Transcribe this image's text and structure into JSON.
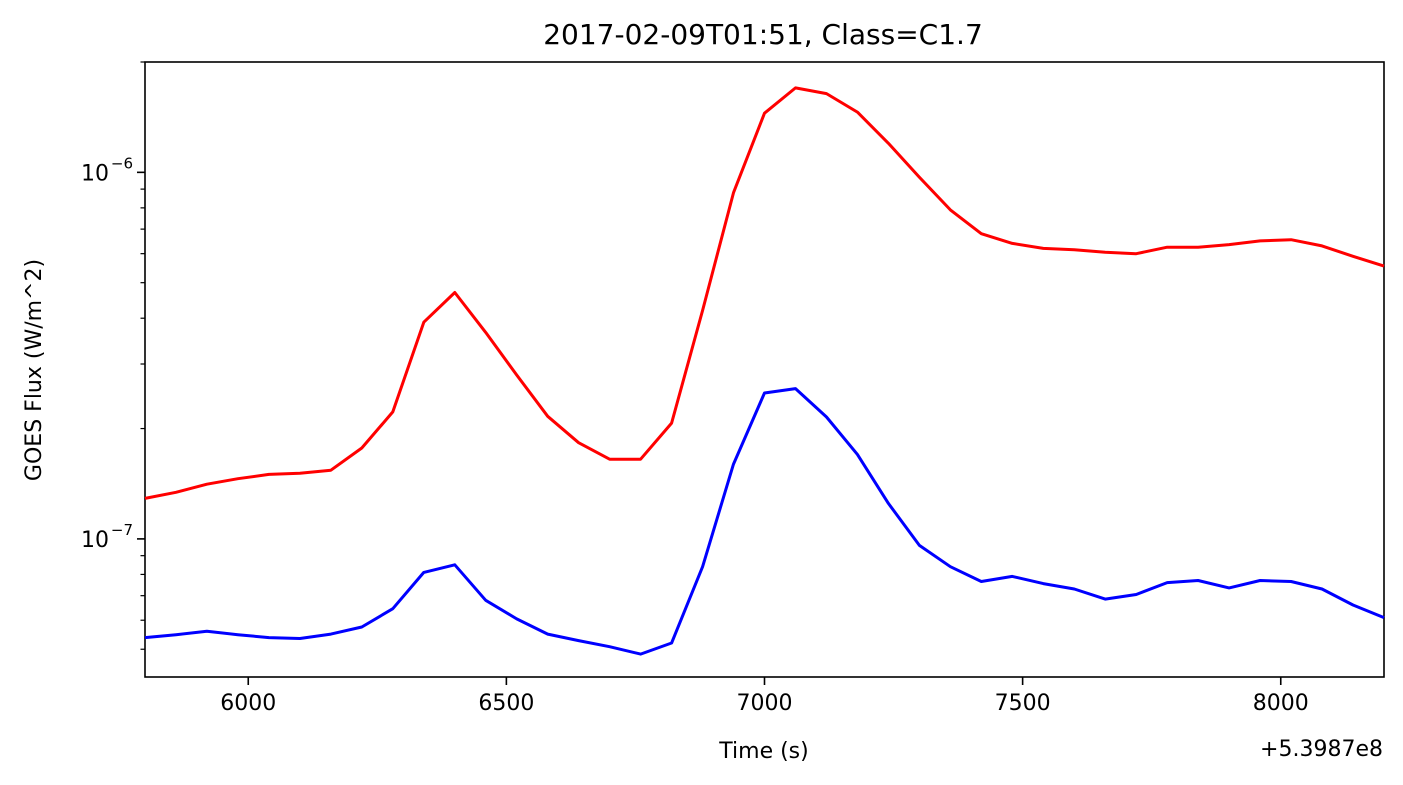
{
  "chart_data": {
    "type": "line",
    "title": "2017-02-09T01:51, Class=C1.7",
    "xlabel": "Time (s)",
    "ylabel": "GOES Flux (W/m^2)",
    "x_offset_label": "+5.3987e8",
    "y_scale": "log",
    "xlim": [
      5800,
      8200
    ],
    "ylim": [
      4.2e-08,
      2e-06
    ],
    "x_ticks": [
      6000,
      6500,
      7000,
      7500,
      8000
    ],
    "y_ticks": [
      {
        "value": 1e-07,
        "base": "10",
        "exponent": "−7"
      },
      {
        "value": 1e-06,
        "base": "10",
        "exponent": "−6"
      }
    ],
    "grid": false,
    "legend": false,
    "series": [
      {
        "color": "#ff0000",
        "x": [
          5800,
          5860,
          5920,
          5980,
          6040,
          6100,
          6160,
          6220,
          6280,
          6340,
          6400,
          6460,
          6520,
          6580,
          6640,
          6700,
          6760,
          6820,
          6880,
          6940,
          7000,
          7060,
          7120,
          7180,
          7240,
          7300,
          7360,
          7420,
          7480,
          7540,
          7600,
          7660,
          7720,
          7780,
          7840,
          7900,
          7960,
          8020,
          8080,
          8140,
          8200
        ],
        "y": [
          1.29e-07,
          1.34e-07,
          1.41e-07,
          1.46e-07,
          1.5e-07,
          1.51e-07,
          1.54e-07,
          1.77e-07,
          2.22e-07,
          3.9e-07,
          4.7e-07,
          3.66e-07,
          2.8e-07,
          2.16e-07,
          1.83e-07,
          1.65e-07,
          1.65e-07,
          2.07e-07,
          4.2e-07,
          8.8e-07,
          1.45e-06,
          1.7e-06,
          1.64e-06,
          1.46e-06,
          1.2e-06,
          9.7e-07,
          7.9e-07,
          6.8e-07,
          6.4e-07,
          6.2e-07,
          6.15e-07,
          6.05e-07,
          6e-07,
          6.25e-07,
          6.25e-07,
          6.35e-07,
          6.5e-07,
          6.55e-07,
          6.3e-07,
          5.9e-07,
          5.55e-07
        ]
      },
      {
        "color": "#0000ff",
        "x": [
          5800,
          5860,
          5920,
          5980,
          6040,
          6100,
          6160,
          6220,
          6280,
          6340,
          6400,
          6460,
          6520,
          6580,
          6640,
          6700,
          6760,
          6820,
          6880,
          6940,
          7000,
          7060,
          7120,
          7180,
          7240,
          7300,
          7360,
          7420,
          7480,
          7540,
          7600,
          7660,
          7720,
          7780,
          7840,
          7900,
          7960,
          8020,
          8080,
          8140,
          8200
        ],
        "y": [
          5.38e-08,
          5.48e-08,
          5.6e-08,
          5.48e-08,
          5.38e-08,
          5.35e-08,
          5.5e-08,
          5.75e-08,
          6.45e-08,
          8.1e-08,
          8.5e-08,
          6.8e-08,
          6.05e-08,
          5.5e-08,
          5.28e-08,
          5.08e-08,
          4.85e-08,
          5.2e-08,
          8.4e-08,
          1.6e-07,
          2.5e-07,
          2.57e-07,
          2.15e-07,
          1.7e-07,
          1.25e-07,
          9.6e-08,
          8.4e-08,
          7.65e-08,
          7.9e-08,
          7.55e-08,
          7.3e-08,
          6.85e-08,
          7.05e-08,
          7.6e-08,
          7.7e-08,
          7.35e-08,
          7.7e-08,
          7.65e-08,
          7.3e-08,
          6.6e-08,
          6.1e-08
        ]
      }
    ]
  }
}
